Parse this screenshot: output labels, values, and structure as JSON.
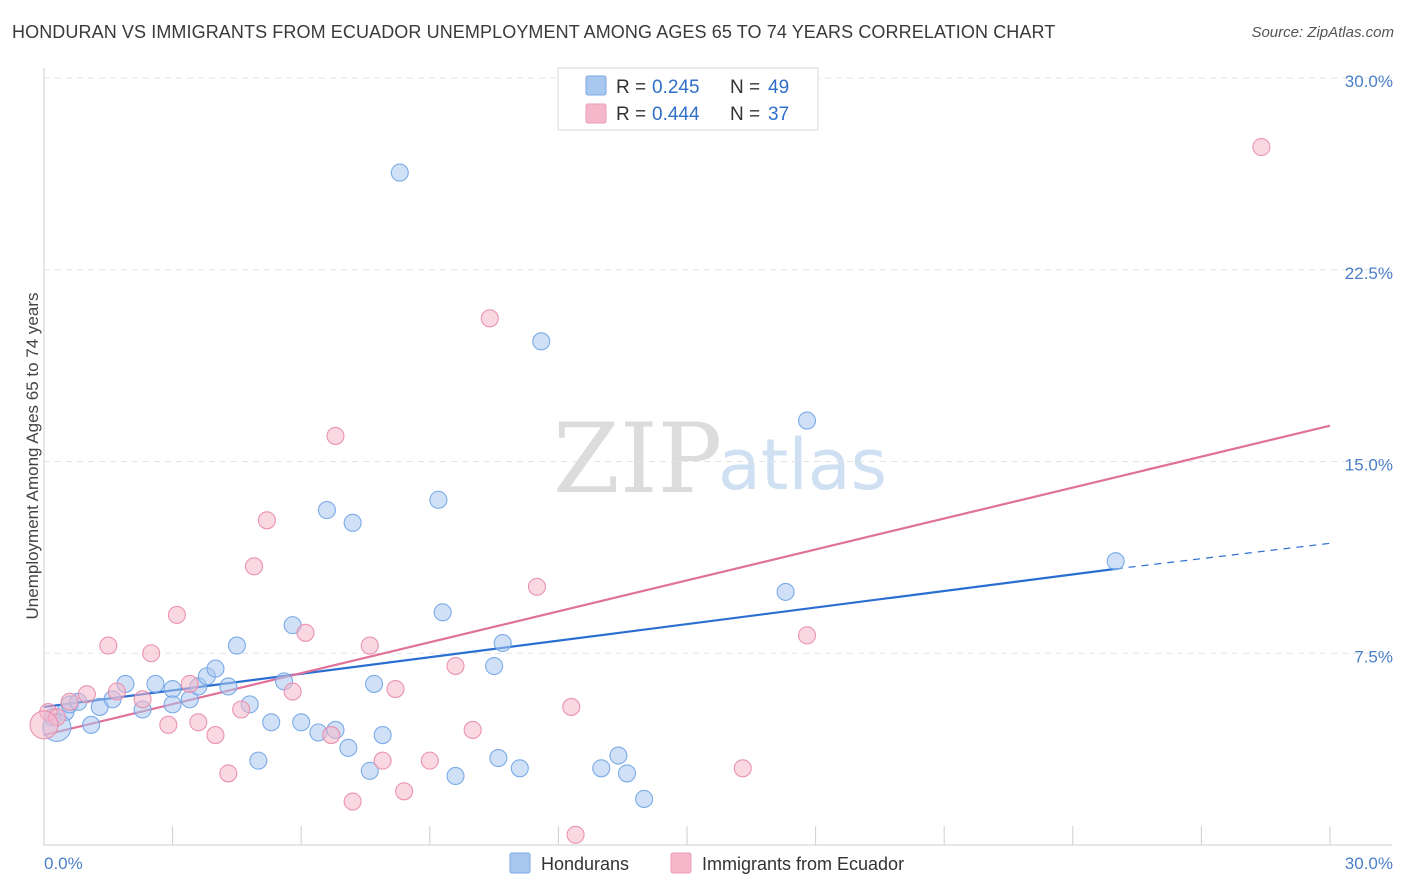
{
  "title": "HONDURAN VS IMMIGRANTS FROM ECUADOR UNEMPLOYMENT AMONG AGES 65 TO 74 YEARS CORRELATION CHART",
  "source": "Source: ZipAtlas.com",
  "watermark": {
    "zip": "ZIP",
    "atlas": "atlas"
  },
  "legend_top": [
    {
      "r_label": "R =",
      "r_value": "0.245",
      "n_label": "N =",
      "n_value": "49",
      "color": "#a9c8f0"
    },
    {
      "r_label": "R =",
      "r_value": "0.444",
      "n_label": "N =",
      "n_value": "37",
      "color": "#f5b8cb"
    }
  ],
  "legend_bottom": [
    {
      "label": "Hondurans",
      "color": "#a9c8f0"
    },
    {
      "label": "Immigrants from Ecuador",
      "color": "#f5b8cb"
    }
  ],
  "chart_data": {
    "type": "scatter",
    "title": "HONDURAN VS IMMIGRANTS FROM ECUADOR UNEMPLOYMENT AMONG AGES 65 TO 74 YEARS CORRELATION CHART",
    "xlabel": "",
    "ylabel": "Unemployment Among Ages 65 to 74 years",
    "xlim": [
      0,
      30
    ],
    "ylim": [
      0,
      30
    ],
    "x_tick_labels": [
      {
        "value": 0,
        "label": "0.0%"
      },
      {
        "value": 30,
        "label": "30.0%"
      }
    ],
    "y_tick_labels": [
      {
        "value": 7.5,
        "label": "7.5%"
      },
      {
        "value": 15,
        "label": "15.0%"
      },
      {
        "value": 22.5,
        "label": "22.5%"
      },
      {
        "value": 30,
        "label": "30.0%"
      }
    ],
    "series": [
      {
        "name": "Hondurans",
        "color": "#6fa3e6",
        "fill": "#a9c8f0",
        "trend": {
          "x0": 0,
          "y0": 5.4,
          "x1": 25,
          "y1": 10.8,
          "x_dash_end": 30,
          "y_dash_end": 11.8,
          "color": "#2a6fd0"
        },
        "points": [
          [
            0.2,
            5.0
          ],
          [
            0.5,
            5.2
          ],
          [
            0.6,
            5.5
          ],
          [
            0.8,
            5.6
          ],
          [
            1.1,
            4.7
          ],
          [
            1.3,
            5.4
          ],
          [
            1.6,
            5.7
          ],
          [
            1.9,
            6.3
          ],
          [
            2.3,
            5.3
          ],
          [
            2.6,
            6.3
          ],
          [
            3.0,
            6.1
          ],
          [
            3.0,
            5.5
          ],
          [
            3.4,
            5.7
          ],
          [
            3.6,
            6.2
          ],
          [
            3.8,
            6.6
          ],
          [
            4.0,
            6.9
          ],
          [
            4.3,
            6.2
          ],
          [
            4.5,
            7.8
          ],
          [
            4.8,
            5.5
          ],
          [
            5.0,
            3.3
          ],
          [
            5.3,
            4.8
          ],
          [
            5.6,
            6.4
          ],
          [
            5.8,
            8.6
          ],
          [
            6.0,
            4.8
          ],
          [
            6.4,
            4.4
          ],
          [
            6.6,
            13.1
          ],
          [
            6.8,
            4.5
          ],
          [
            7.1,
            3.8
          ],
          [
            7.2,
            12.6
          ],
          [
            7.6,
            2.9
          ],
          [
            7.7,
            6.3
          ],
          [
            7.9,
            4.3
          ],
          [
            8.3,
            26.3
          ],
          [
            9.2,
            13.5
          ],
          [
            9.3,
            9.1
          ],
          [
            9.6,
            2.7
          ],
          [
            10.5,
            7.0
          ],
          [
            10.6,
            3.4
          ],
          [
            10.7,
            7.9
          ],
          [
            11.1,
            3.0
          ],
          [
            11.6,
            19.7
          ],
          [
            13.0,
            3.0
          ],
          [
            13.4,
            3.5
          ],
          [
            13.6,
            2.8
          ],
          [
            14.0,
            1.8
          ],
          [
            17.3,
            9.9
          ],
          [
            17.8,
            16.6
          ],
          [
            25.0,
            11.1
          ],
          [
            0.3,
            4.6
          ]
        ]
      },
      {
        "name": "Immigrants from Ecuador",
        "color": "#e88aa8",
        "fill": "#f5b8cb",
        "trend": {
          "x0": 0,
          "y0": 4.3,
          "x1": 30,
          "y1": 16.4,
          "color": "#e0719a"
        },
        "points": [
          [
            0.1,
            5.2
          ],
          [
            0.3,
            5.0
          ],
          [
            0.6,
            5.6
          ],
          [
            1.0,
            5.9
          ],
          [
            1.5,
            7.8
          ],
          [
            1.7,
            6.0
          ],
          [
            2.3,
            5.7
          ],
          [
            2.5,
            7.5
          ],
          [
            2.9,
            4.7
          ],
          [
            3.1,
            9.0
          ],
          [
            3.4,
            6.3
          ],
          [
            3.6,
            4.8
          ],
          [
            4.0,
            4.3
          ],
          [
            4.3,
            2.8
          ],
          [
            4.6,
            5.3
          ],
          [
            4.9,
            10.9
          ],
          [
            5.2,
            12.7
          ],
          [
            5.8,
            6.0
          ],
          [
            6.1,
            8.3
          ],
          [
            6.7,
            4.3
          ],
          [
            6.8,
            16.0
          ],
          [
            7.2,
            1.7
          ],
          [
            7.6,
            7.8
          ],
          [
            7.9,
            3.3
          ],
          [
            8.2,
            6.1
          ],
          [
            8.4,
            2.1
          ],
          [
            9.0,
            3.3
          ],
          [
            9.6,
            7.0
          ],
          [
            10.0,
            4.5
          ],
          [
            10.4,
            20.6
          ],
          [
            11.5,
            10.1
          ],
          [
            12.3,
            5.4
          ],
          [
            12.4,
            0.4
          ],
          [
            16.3,
            3.0
          ],
          [
            17.8,
            8.2
          ],
          [
            28.4,
            27.3
          ],
          [
            0.0,
            4.7
          ]
        ]
      }
    ]
  }
}
